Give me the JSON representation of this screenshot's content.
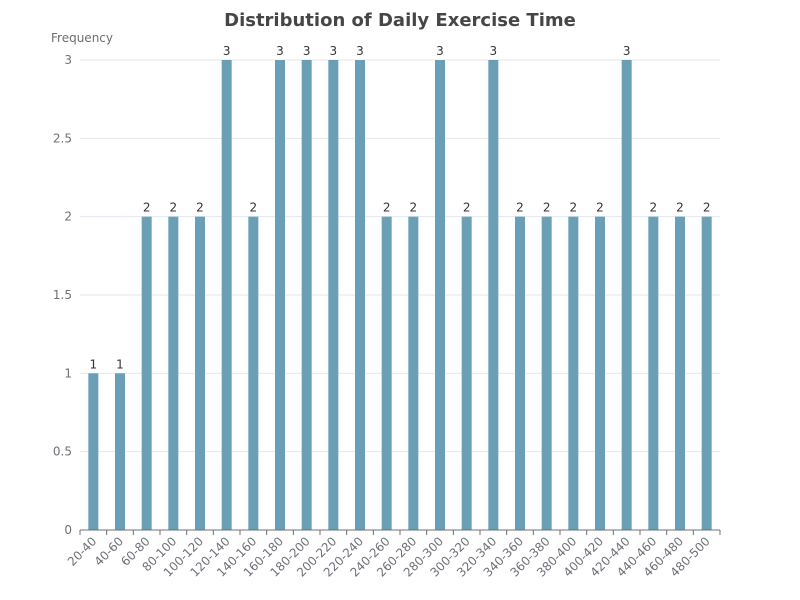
{
  "chart_data": {
    "type": "bar",
    "title": "Distribution of Daily Exercise Time",
    "xlabel": "",
    "ylabel": "Frequency",
    "ylim": [
      0,
      3
    ],
    "yticks": [
      "0",
      "0.5",
      "1",
      "1.5",
      "2",
      "2.5",
      "3"
    ],
    "grid": true,
    "legend": "none",
    "categories": [
      "20-40",
      "40-60",
      "60-80",
      "80-100",
      "100-120",
      "120-140",
      "140-160",
      "160-180",
      "180-200",
      "200-220",
      "220-240",
      "240-260",
      "260-280",
      "280-300",
      "300-320",
      "320-340",
      "340-360",
      "360-380",
      "380-400",
      "400-420",
      "420-440",
      "440-460",
      "460-480",
      "480-500"
    ],
    "values": [
      1,
      1,
      2,
      2,
      2,
      3,
      2,
      3,
      3,
      3,
      3,
      2,
      2,
      3,
      2,
      3,
      2,
      2,
      2,
      2,
      3,
      2,
      2,
      2
    ],
    "bar_color": "#6a9fb5",
    "axis_color": "#6e7079",
    "grid_color": "#e0e6f1",
    "label_color": "#333333"
  }
}
